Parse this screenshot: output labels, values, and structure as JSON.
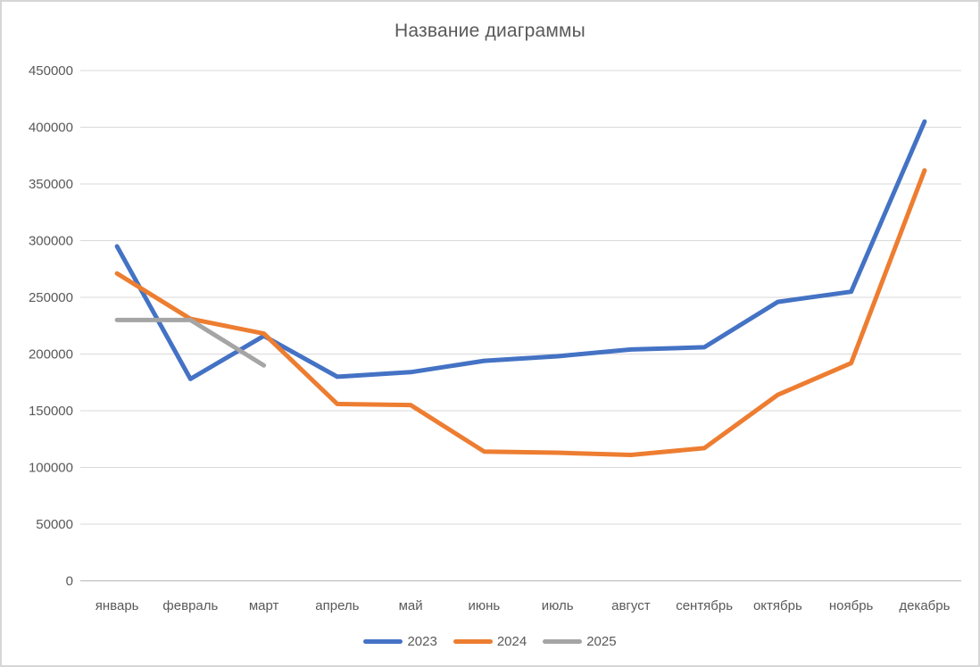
{
  "chart_title": "Название диаграммы",
  "colors": {
    "text": "#595959",
    "gridline": "#d9d9d9",
    "axis_line": "#bfbfbf",
    "frame_border": "#d6d6d6",
    "background": "#ffffff"
  },
  "chart_data": {
    "type": "line",
    "title": "Название диаграммы",
    "categories": [
      "январь",
      "февраль",
      "март",
      "апрель",
      "май",
      "июнь",
      "июль",
      "август",
      "сентябрь",
      "октябрь",
      "ноябрь",
      "декабрь"
    ],
    "series": [
      {
        "name": "2023",
        "color": "#4472C4",
        "values": [
          295000,
          178000,
          216000,
          180000,
          184000,
          194000,
          198000,
          204000,
          206000,
          246000,
          255000,
          405000
        ]
      },
      {
        "name": "2024",
        "color": "#ED7D31",
        "values": [
          271000,
          231000,
          218000,
          156000,
          155000,
          114000,
          113000,
          111000,
          117000,
          164000,
          192000,
          362000
        ]
      },
      {
        "name": "2025",
        "color": "#A5A5A5",
        "values": [
          230000,
          230000,
          190000
        ]
      }
    ],
    "xlabel": "",
    "ylabel": "",
    "ylim": [
      0,
      450000
    ],
    "ytick_step": 50000,
    "yticks": [
      "0",
      "50000",
      "100000",
      "150000",
      "200000",
      "250000",
      "300000",
      "350000",
      "400000",
      "450000"
    ],
    "grid": true,
    "legend_position": "bottom"
  }
}
